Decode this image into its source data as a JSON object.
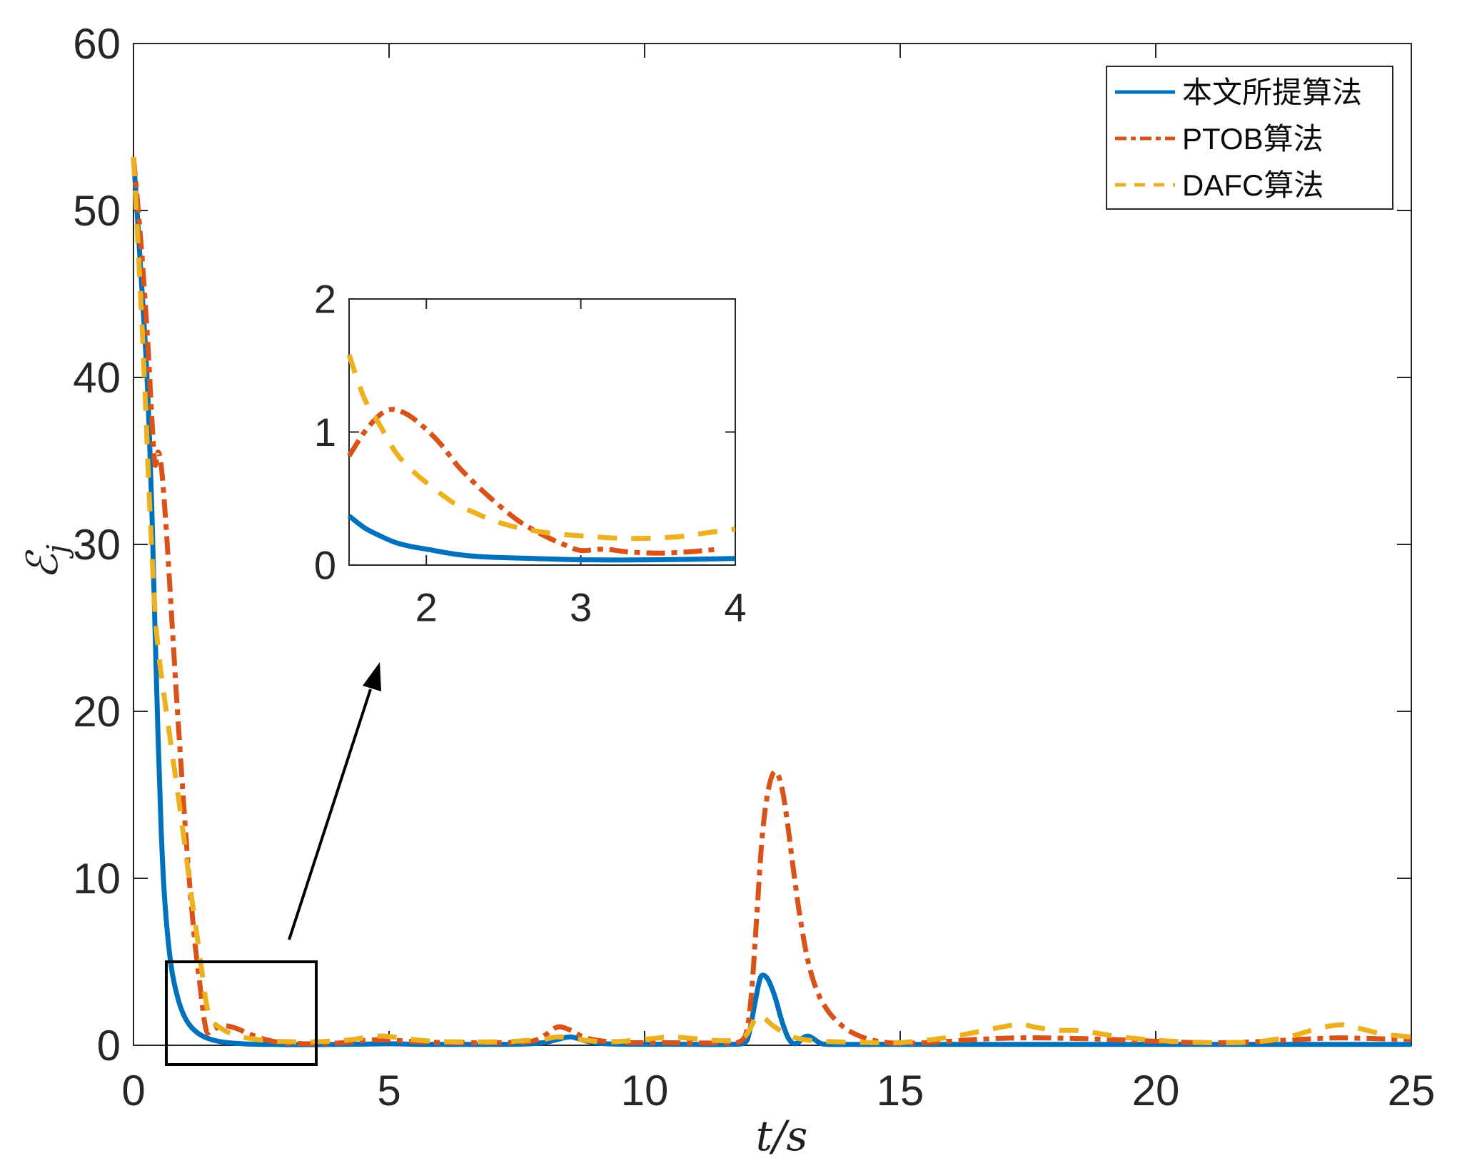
{
  "figure": {
    "background": "#ffffff",
    "axis_color": "#262626",
    "annotation_color": "#000000"
  },
  "chart_data": {
    "type": "line",
    "title": "",
    "xlabel": "t/s",
    "ylabel": "ℰ",
    "ylabel_sub": "j",
    "grid": false,
    "axes": {
      "main": {
        "xlim": [
          0,
          25
        ],
        "ylim": [
          0,
          60
        ],
        "xticks": [
          0,
          5,
          10,
          15,
          20,
          25
        ],
        "yticks": [
          0,
          10,
          20,
          30,
          40,
          50,
          60
        ]
      },
      "inset": {
        "xlim": [
          1.5,
          4
        ],
        "ylim": [
          0,
          2
        ],
        "xticks": [
          2,
          3,
          4
        ],
        "yticks": [
          0,
          1,
          2
        ]
      }
    },
    "legend": {
      "position": "northeast",
      "entries": [
        "本文所提算法",
        "PTOB算法",
        "DAFC算法"
      ]
    },
    "annotations": {
      "zoom_rect": {
        "t_range": [
          0.64,
          3.58
        ],
        "v_range": [
          -1.2,
          4.9
        ]
      },
      "arrow": "from zoom rectangle to inset axes"
    },
    "series": [
      {
        "name": "本文所提算法",
        "color": "#0072BD",
        "style": "solid",
        "points": [
          [
            0,
            53.2
          ],
          [
            0.08,
            49.5
          ],
          [
            0.16,
            45.5
          ],
          [
            0.24,
            41.5
          ],
          [
            0.3,
            37.5
          ],
          [
            0.36,
            32
          ],
          [
            0.42,
            25
          ],
          [
            0.48,
            18.5
          ],
          [
            0.54,
            13
          ],
          [
            0.6,
            9.2
          ],
          [
            0.68,
            6.2
          ],
          [
            0.76,
            4.3
          ],
          [
            0.86,
            2.9
          ],
          [
            0.97,
            1.9
          ],
          [
            1.1,
            1.2
          ],
          [
            1.25,
            0.75
          ],
          [
            1.4,
            0.48
          ],
          [
            1.5,
            0.37
          ],
          [
            1.6,
            0.28
          ],
          [
            1.7,
            0.22
          ],
          [
            1.8,
            0.17
          ],
          [
            1.9,
            0.14
          ],
          [
            2,
            0.12
          ],
          [
            2.2,
            0.08
          ],
          [
            2.4,
            0.06
          ],
          [
            2.7,
            0.05
          ],
          [
            3,
            0.04
          ],
          [
            3.5,
            0.04
          ],
          [
            4,
            0.05
          ],
          [
            4.5,
            0.07
          ],
          [
            5,
            0.09
          ],
          [
            5.5,
            0.06
          ],
          [
            6,
            0.05
          ],
          [
            6.5,
            0.05
          ],
          [
            7,
            0.05
          ],
          [
            7.6,
            0.07
          ],
          [
            8,
            0.15
          ],
          [
            8.3,
            0.35
          ],
          [
            8.55,
            0.5
          ],
          [
            8.8,
            0.3
          ],
          [
            9.1,
            0.12
          ],
          [
            9.5,
            0.07
          ],
          [
            10,
            0.06
          ],
          [
            10.5,
            0.06
          ],
          [
            11,
            0.05
          ],
          [
            11.6,
            0.05
          ],
          [
            11.95,
            0.15
          ],
          [
            12.05,
            0.8
          ],
          [
            12.15,
            2.4
          ],
          [
            12.25,
            3.9
          ],
          [
            12.32,
            4.2
          ],
          [
            12.42,
            3.9
          ],
          [
            12.55,
            2.9
          ],
          [
            12.68,
            1.5
          ],
          [
            12.8,
            0.5
          ],
          [
            12.9,
            0.12
          ],
          [
            13,
            0.15
          ],
          [
            13.1,
            0.45
          ],
          [
            13.2,
            0.55
          ],
          [
            13.3,
            0.4
          ],
          [
            13.42,
            0.15
          ],
          [
            13.55,
            0.06
          ],
          [
            14,
            0.05
          ],
          [
            14.5,
            0.05
          ],
          [
            15,
            0.05
          ],
          [
            16,
            0.05
          ],
          [
            17,
            0.05
          ],
          [
            18,
            0.05
          ],
          [
            19,
            0.05
          ],
          [
            20,
            0.05
          ],
          [
            21,
            0.05
          ],
          [
            22,
            0.05
          ],
          [
            23,
            0.05
          ],
          [
            24,
            0.05
          ],
          [
            25,
            0.05
          ]
        ]
      },
      {
        "name": "PTOB算法",
        "color": "#D95319",
        "style": "dashdot",
        "points": [
          [
            0,
            53.2
          ],
          [
            0.08,
            50.5
          ],
          [
            0.16,
            47.5
          ],
          [
            0.24,
            44
          ],
          [
            0.3,
            41
          ],
          [
            0.36,
            37.5
          ],
          [
            0.42,
            34.8
          ],
          [
            0.47,
            35.5
          ],
          [
            0.52,
            35.2
          ],
          [
            0.58,
            33.5
          ],
          [
            0.66,
            30
          ],
          [
            0.75,
            25.5
          ],
          [
            0.84,
            21
          ],
          [
            0.93,
            16.8
          ],
          [
            1.02,
            12.8
          ],
          [
            1.11,
            9.2
          ],
          [
            1.2,
            6.2
          ],
          [
            1.3,
            3.6
          ],
          [
            1.38,
            1.6
          ],
          [
            1.44,
            0.78
          ],
          [
            1.5,
            0.82
          ],
          [
            1.6,
            1
          ],
          [
            1.7,
            1.13
          ],
          [
            1.78,
            1.17
          ],
          [
            1.88,
            1.13
          ],
          [
            2,
            1.02
          ],
          [
            2.1,
            0.9
          ],
          [
            2.2,
            0.75
          ],
          [
            2.3,
            0.63
          ],
          [
            2.4,
            0.52
          ],
          [
            2.5,
            0.42
          ],
          [
            2.6,
            0.33
          ],
          [
            2.7,
            0.26
          ],
          [
            2.8,
            0.2
          ],
          [
            2.9,
            0.15
          ],
          [
            3,
            0.11
          ],
          [
            3.15,
            0.12
          ],
          [
            3.3,
            0.1
          ],
          [
            3.5,
            0.09
          ],
          [
            3.7,
            0.1
          ],
          [
            3.9,
            0.12
          ],
          [
            4.2,
            0.18
          ],
          [
            4.5,
            0.28
          ],
          [
            4.8,
            0.33
          ],
          [
            5.1,
            0.3
          ],
          [
            5.5,
            0.22
          ],
          [
            5.9,
            0.17
          ],
          [
            6.3,
            0.15
          ],
          [
            6.8,
            0.15
          ],
          [
            7.3,
            0.16
          ],
          [
            7.8,
            0.25
          ],
          [
            8.05,
            0.6
          ],
          [
            8.3,
            1.1
          ],
          [
            8.55,
            0.9
          ],
          [
            8.8,
            0.5
          ],
          [
            9.1,
            0.28
          ],
          [
            9.5,
            0.18
          ],
          [
            10,
            0.15
          ],
          [
            10.5,
            0.15
          ],
          [
            11,
            0.14
          ],
          [
            11.5,
            0.14
          ],
          [
            11.85,
            0.2
          ],
          [
            12,
            0.9
          ],
          [
            12.1,
            3.5
          ],
          [
            12.2,
            8
          ],
          [
            12.3,
            12.5
          ],
          [
            12.42,
            15.3
          ],
          [
            12.55,
            16.4
          ],
          [
            12.68,
            15.5
          ],
          [
            12.8,
            13.2
          ],
          [
            12.92,
            10.3
          ],
          [
            13.05,
            7.5
          ],
          [
            13.2,
            5
          ],
          [
            13.38,
            3.2
          ],
          [
            13.6,
            2
          ],
          [
            13.85,
            1.2
          ],
          [
            14.1,
            0.7
          ],
          [
            14.4,
            0.35
          ],
          [
            14.7,
            0.18
          ],
          [
            15,
            0.12
          ],
          [
            15.5,
            0.15
          ],
          [
            16,
            0.25
          ],
          [
            16.5,
            0.35
          ],
          [
            17,
            0.42
          ],
          [
            17.5,
            0.45
          ],
          [
            18,
            0.43
          ],
          [
            18.5,
            0.4
          ],
          [
            19,
            0.36
          ],
          [
            19.5,
            0.3
          ],
          [
            20,
            0.24
          ],
          [
            20.5,
            0.18
          ],
          [
            21,
            0.15
          ],
          [
            21.5,
            0.16
          ],
          [
            22,
            0.22
          ],
          [
            22.5,
            0.3
          ],
          [
            23,
            0.38
          ],
          [
            23.5,
            0.44
          ],
          [
            24,
            0.42
          ],
          [
            24.5,
            0.38
          ],
          [
            25,
            0.35
          ]
        ]
      },
      {
        "name": "DAFC算法",
        "color": "#EDB120",
        "style": "dashed",
        "points": [
          [
            0,
            53.2
          ],
          [
            0.08,
            48.5
          ],
          [
            0.16,
            43.5
          ],
          [
            0.24,
            38
          ],
          [
            0.3,
            33.5
          ],
          [
            0.36,
            29.5
          ],
          [
            0.42,
            26
          ],
          [
            0.48,
            23.8
          ],
          [
            0.56,
            21.8
          ],
          [
            0.66,
            19.6
          ],
          [
            0.78,
            17
          ],
          [
            0.9,
            14.4
          ],
          [
            1.02,
            11.6
          ],
          [
            1.14,
            8.8
          ],
          [
            1.26,
            6.2
          ],
          [
            1.34,
            4.4
          ],
          [
            1.42,
            2.6
          ],
          [
            1.5,
            1.58
          ],
          [
            1.6,
            1.25
          ],
          [
            1.7,
            1.05
          ],
          [
            1.8,
            0.85
          ],
          [
            1.9,
            0.72
          ],
          [
            2,
            0.62
          ],
          [
            2.1,
            0.53
          ],
          [
            2.2,
            0.45
          ],
          [
            2.3,
            0.4
          ],
          [
            2.4,
            0.35
          ],
          [
            2.5,
            0.31
          ],
          [
            2.6,
            0.28
          ],
          [
            2.8,
            0.24
          ],
          [
            3,
            0.22
          ],
          [
            3.3,
            0.2
          ],
          [
            3.6,
            0.21
          ],
          [
            3.8,
            0.24
          ],
          [
            4,
            0.27
          ],
          [
            4.3,
            0.35
          ],
          [
            4.6,
            0.5
          ],
          [
            4.9,
            0.55
          ],
          [
            5.2,
            0.45
          ],
          [
            5.6,
            0.3
          ],
          [
            6,
            0.22
          ],
          [
            6.5,
            0.2
          ],
          [
            7,
            0.2
          ],
          [
            7.5,
            0.25
          ],
          [
            8,
            0.35
          ],
          [
            8.3,
            0.5
          ],
          [
            8.6,
            0.4
          ],
          [
            9,
            0.25
          ],
          [
            9.4,
            0.22
          ],
          [
            9.8,
            0.3
          ],
          [
            10.2,
            0.42
          ],
          [
            10.5,
            0.5
          ],
          [
            10.9,
            0.42
          ],
          [
            11.3,
            0.3
          ],
          [
            11.7,
            0.28
          ],
          [
            11.95,
            0.5
          ],
          [
            12.08,
            1.1
          ],
          [
            12.2,
            1.75
          ],
          [
            12.35,
            1.6
          ],
          [
            12.5,
            1.2
          ],
          [
            12.7,
            0.8
          ],
          [
            12.9,
            0.5
          ],
          [
            13.1,
            0.35
          ],
          [
            13.4,
            0.25
          ],
          [
            13.8,
            0.2
          ],
          [
            14.2,
            0.17
          ],
          [
            14.6,
            0.15
          ],
          [
            15,
            0.16
          ],
          [
            15.5,
            0.3
          ],
          [
            16,
            0.5
          ],
          [
            16.5,
            0.8
          ],
          [
            17,
            1.1
          ],
          [
            17.35,
            1.25
          ],
          [
            17.7,
            1.05
          ],
          [
            18.1,
            0.9
          ],
          [
            18.5,
            0.88
          ],
          [
            18.9,
            0.7
          ],
          [
            19.3,
            0.5
          ],
          [
            19.7,
            0.38
          ],
          [
            20.1,
            0.28
          ],
          [
            20.6,
            0.2
          ],
          [
            21.1,
            0.15
          ],
          [
            21.6,
            0.16
          ],
          [
            22.1,
            0.25
          ],
          [
            22.6,
            0.5
          ],
          [
            23,
            0.85
          ],
          [
            23.4,
            1.15
          ],
          [
            23.7,
            1.22
          ],
          [
            24,
            1
          ],
          [
            24.4,
            0.7
          ],
          [
            24.8,
            0.55
          ],
          [
            25,
            0.5
          ]
        ]
      }
    ]
  }
}
